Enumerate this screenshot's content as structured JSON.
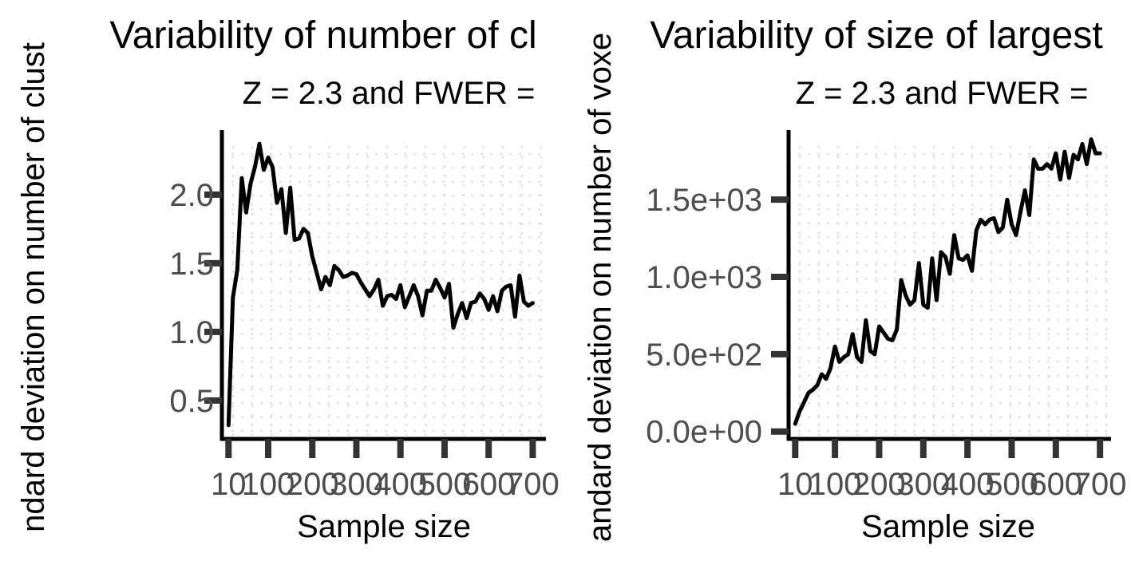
{
  "chart_data": [
    {
      "type": "line",
      "title": "Variability of number of cl",
      "subtitle": "Z = 2.3 and FWER =",
      "xlabel": "Sample size",
      "ylabel": "ndard deviation on number of clust",
      "x_ticks": [
        10,
        100,
        200,
        300,
        400,
        500,
        600,
        700
      ],
      "x_tick_labels": [
        "10",
        "100",
        "200",
        "300",
        "400",
        "500",
        "600",
        "700"
      ],
      "y_ticks": [
        0.5,
        1.0,
        1.5,
        2.0
      ],
      "y_tick_labels": [
        "0.5",
        "1.0",
        "1.5",
        "2.0"
      ],
      "xlim": [
        -5,
        730
      ],
      "ylim": [
        0.22,
        2.47
      ],
      "grid": true,
      "series": [
        {
          "color": "#000000",
          "x": [
            10,
            20,
            30,
            40,
            50,
            60,
            70,
            80,
            90,
            100,
            110,
            120,
            130,
            140,
            150,
            160,
            170,
            180,
            190,
            200,
            210,
            220,
            230,
            240,
            250,
            260,
            270,
            280,
            290,
            300,
            310,
            320,
            330,
            340,
            350,
            360,
            370,
            380,
            390,
            400,
            410,
            420,
            430,
            440,
            450,
            460,
            470,
            480,
            490,
            500,
            510,
            520,
            530,
            540,
            550,
            560,
            570,
            580,
            590,
            600,
            610,
            620,
            630,
            640,
            650,
            660,
            670,
            680,
            690,
            700
          ],
          "y": [
            0.32,
            1.25,
            1.45,
            2.12,
            1.87,
            2.08,
            2.2,
            2.37,
            2.18,
            2.27,
            2.2,
            1.94,
            2.04,
            1.72,
            2.05,
            1.67,
            1.68,
            1.75,
            1.72,
            1.55,
            1.43,
            1.31,
            1.4,
            1.34,
            1.48,
            1.45,
            1.4,
            1.41,
            1.43,
            1.42,
            1.36,
            1.31,
            1.26,
            1.31,
            1.38,
            1.19,
            1.26,
            1.27,
            1.24,
            1.34,
            1.18,
            1.26,
            1.34,
            1.26,
            1.12,
            1.3,
            1.3,
            1.38,
            1.32,
            1.25,
            1.35,
            1.03,
            1.13,
            1.21,
            1.1,
            1.21,
            1.22,
            1.28,
            1.24,
            1.16,
            1.26,
            1.15,
            1.3,
            1.33,
            1.34,
            1.11,
            1.41,
            1.22,
            1.19,
            1.21
          ]
        }
      ]
    },
    {
      "type": "line",
      "title": "Variability of size of largest",
      "subtitle": "Z = 2.3 and FWER =",
      "xlabel": "Sample size",
      "ylabel": "andard deviation on number of voxe",
      "x_ticks": [
        10,
        100,
        200,
        300,
        400,
        500,
        600,
        700
      ],
      "x_tick_labels": [
        "10",
        "100",
        "200",
        "300",
        "400",
        "500",
        "600",
        "700"
      ],
      "y_ticks": [
        0,
        500,
        1000,
        1500
      ],
      "y_tick_labels": [
        "0.0e+00",
        "5.0e+02",
        "1.0e+03",
        "1.5e+03"
      ],
      "xlim": [
        -5,
        725
      ],
      "ylim": [
        -48,
        1950
      ],
      "grid": true,
      "series": [
        {
          "color": "#000000",
          "x": [
            10,
            20,
            30,
            40,
            50,
            60,
            70,
            80,
            90,
            100,
            110,
            120,
            130,
            140,
            150,
            160,
            170,
            180,
            190,
            200,
            210,
            220,
            230,
            240,
            250,
            260,
            270,
            280,
            290,
            300,
            310,
            320,
            330,
            340,
            350,
            360,
            370,
            380,
            390,
            400,
            410,
            420,
            430,
            440,
            450,
            460,
            470,
            480,
            490,
            500,
            510,
            520,
            530,
            540,
            550,
            560,
            570,
            580,
            590,
            600,
            610,
            620,
            630,
            640,
            650,
            660,
            670,
            680,
            690,
            700
          ],
          "y": [
            50,
            130,
            190,
            250,
            270,
            300,
            370,
            340,
            410,
            550,
            450,
            480,
            500,
            630,
            480,
            450,
            720,
            520,
            500,
            680,
            640,
            600,
            590,
            660,
            980,
            880,
            820,
            850,
            1090,
            820,
            800,
            1120,
            850,
            1160,
            1130,
            1020,
            1270,
            1120,
            1110,
            1140,
            1040,
            1300,
            1370,
            1340,
            1370,
            1380,
            1290,
            1320,
            1500,
            1340,
            1270,
            1420,
            1560,
            1400,
            1760,
            1700,
            1700,
            1730,
            1700,
            1800,
            1630,
            1810,
            1640,
            1790,
            1760,
            1860,
            1730,
            1890,
            1800,
            1800
          ]
        }
      ]
    }
  ]
}
